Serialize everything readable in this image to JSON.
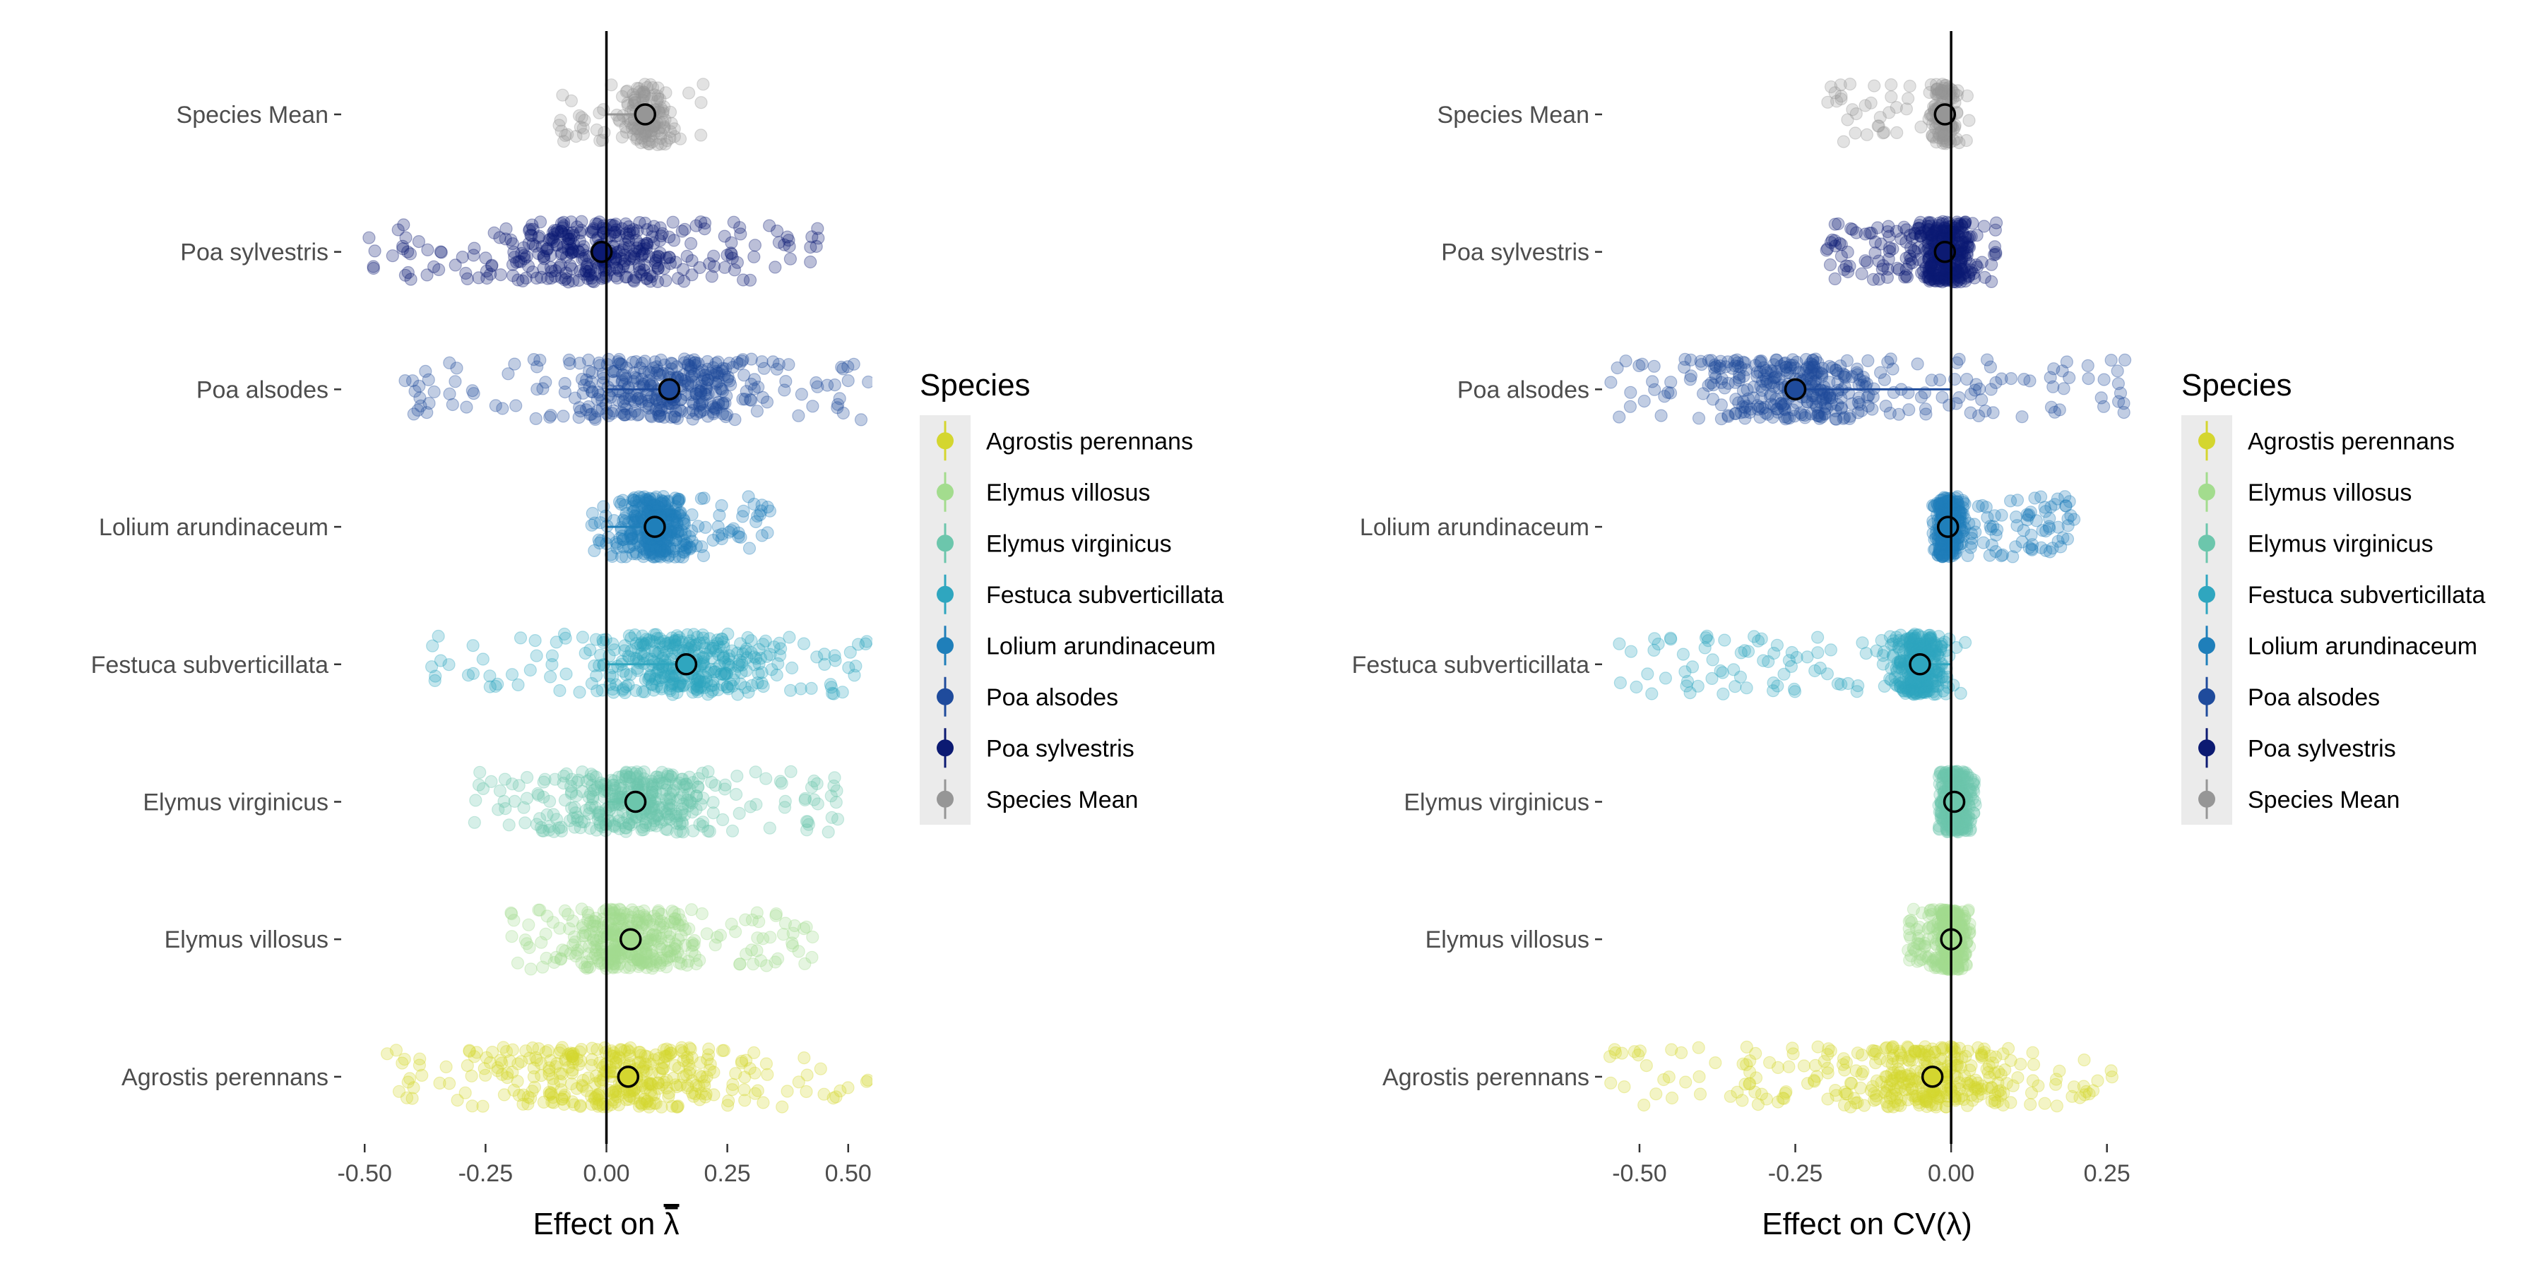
{
  "species_colors": {
    "Agrostis perennans": "#d4d62f",
    "Elymus villosus": "#a3dc8e",
    "Elymus virginicus": "#6cc6ac",
    "Festuca subverticillata": "#2fa6bf",
    "Lolium arundinaceum": "#1f7fba",
    "Poa alsodes": "#1f4b9c",
    "Poa sylvestris": "#0c1a72",
    "Species Mean": "#969696"
  },
  "chart_data": [
    {
      "type": "scatter",
      "panel": "left",
      "categories": [
        "Species Mean",
        "Poa sylvestris",
        "Poa alsodes",
        "Lolium arundinaceum",
        "Festuca subverticillata",
        "Elymus virginicus",
        "Elymus villosus",
        "Agrostis perennans"
      ],
      "xlabel_text": "Effect on ",
      "xlabel_symbol": "λ",
      "xlim": [
        -0.55,
        0.55
      ],
      "xticks": [
        -0.5,
        -0.25,
        0.0,
        0.25,
        0.5
      ],
      "xtick_labels": [
        "-0.50",
        "-0.25",
        "0.00",
        "0.25",
        "0.50"
      ],
      "means": {
        "Species Mean": 0.08,
        "Poa sylvestris": -0.01,
        "Poa alsodes": 0.13,
        "Lolium arundinaceum": 0.1,
        "Festuca subverticillata": 0.165,
        "Elymus virginicus": 0.06,
        "Elymus villosus": 0.05,
        "Agrostis perennans": 0.045
      },
      "spread": {
        "Species Mean": [
          -0.1,
          0.2
        ],
        "Poa sylvestris": [
          -0.5,
          0.45
        ],
        "Poa alsodes": [
          -0.43,
          0.55
        ],
        "Lolium arundinaceum": [
          -0.04,
          0.34
        ],
        "Festuca subverticillata": [
          -0.37,
          0.55
        ],
        "Elymus virginicus": [
          -0.29,
          0.48
        ],
        "Elymus villosus": [
          -0.2,
          0.43
        ],
        "Agrostis perennans": [
          -0.47,
          0.55
        ]
      }
    },
    {
      "type": "scatter",
      "panel": "right",
      "categories": [
        "Species Mean",
        "Poa sylvestris",
        "Poa alsodes",
        "Lolium arundinaceum",
        "Festuca subverticillata",
        "Elymus virginicus",
        "Elymus villosus",
        "Agrostis perennans"
      ],
      "xlabel_text": "Effect on CV(λ)",
      "xlim": [
        -0.56,
        0.29
      ],
      "xticks": [
        -0.5,
        -0.25,
        0.0,
        0.25
      ],
      "xtick_labels": [
        "-0.50",
        "-0.25",
        "0.00",
        "0.25"
      ],
      "means": {
        "Species Mean": -0.01,
        "Poa sylvestris": -0.01,
        "Poa alsodes": -0.25,
        "Lolium arundinaceum": -0.005,
        "Festuca subverticillata": -0.05,
        "Elymus virginicus": 0.005,
        "Elymus villosus": 0.0,
        "Agrostis perennans": -0.03
      },
      "spread": {
        "Species Mean": [
          -0.2,
          0.03
        ],
        "Poa sylvestris": [
          -0.2,
          0.08
        ],
        "Poa alsodes": [
          -0.55,
          0.28
        ],
        "Lolium arundinaceum": [
          -0.03,
          0.2
        ],
        "Festuca subverticillata": [
          -0.54,
          0.03
        ],
        "Elymus virginicus": [
          -0.02,
          0.04
        ],
        "Elymus villosus": [
          -0.07,
          0.03
        ],
        "Agrostis perennans": [
          -0.55,
          0.28
        ]
      }
    }
  ],
  "legend": {
    "title": "Species",
    "items": [
      "Agrostis perennans",
      "Elymus villosus",
      "Elymus virginicus",
      "Festuca subverticillata",
      "Lolium arundinaceum",
      "Poa alsodes",
      "Poa sylvestris",
      "Species Mean"
    ]
  }
}
